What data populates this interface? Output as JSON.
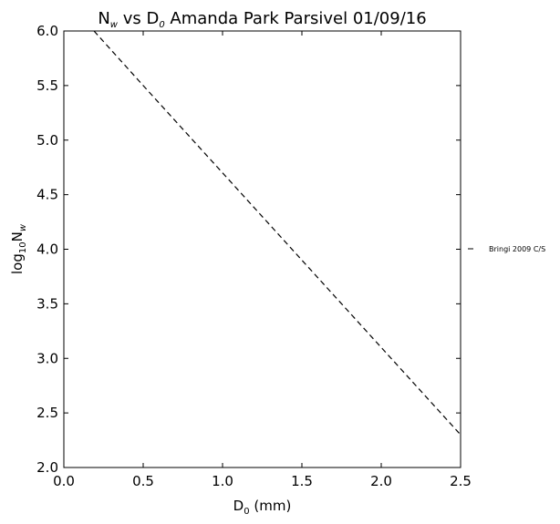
{
  "chart_data": {
    "type": "line",
    "title": [
      "N",
      "w",
      " vs D",
      "0",
      " Amanda Park Parsivel 01/09/16"
    ],
    "xlabel": [
      "D",
      "0",
      " (mm)"
    ],
    "ylabel": [
      "log",
      "10",
      "N",
      "w"
    ],
    "x": [
      0.19,
      0.5,
      1.0,
      1.5,
      2.0,
      2.5
    ],
    "series": [
      {
        "name": "Bringi 2009 C/S",
        "color": "#000000",
        "dash": true,
        "values": [
          6.0,
          5.5,
          4.7,
          3.9,
          3.1,
          2.3
        ]
      }
    ],
    "xlim": [
      0,
      2.5
    ],
    "ylim": [
      2,
      6
    ],
    "xticks": [
      {
        "value": 0,
        "label": "0.0"
      },
      {
        "value": 0.5,
        "label": "0.5"
      },
      {
        "value": 1,
        "label": "1.0"
      },
      {
        "value": 1.5,
        "label": "1.5"
      },
      {
        "value": 2,
        "label": "2.0"
      },
      {
        "value": 2.5,
        "label": "2.5"
      }
    ],
    "yticks": [
      {
        "value": 2,
        "label": "2.0"
      },
      {
        "value": 2.5,
        "label": "2.5"
      },
      {
        "value": 3,
        "label": "3.0"
      },
      {
        "value": 3.5,
        "label": "3.5"
      },
      {
        "value": 4,
        "label": "4.0"
      },
      {
        "value": 4.5,
        "label": "4.5"
      },
      {
        "value": 5,
        "label": "5.0"
      },
      {
        "value": 5.5,
        "label": "5.5"
      },
      {
        "value": 6,
        "label": "6.0"
      }
    ],
    "grid": false,
    "legend": "outside-right"
  }
}
